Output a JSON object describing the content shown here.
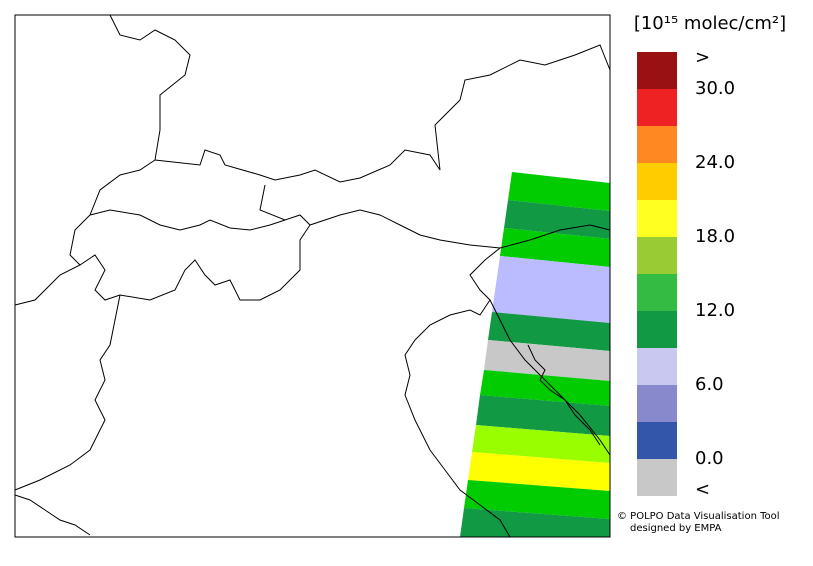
{
  "colorbar": {
    "title": "[10¹⁵ molec/cm²]",
    "clim": [
      0,
      30
    ],
    "ticks": [
      {
        "value": 0,
        "label": "0.0"
      },
      {
        "value": 6,
        "label": "6.0"
      },
      {
        "value": 12,
        "label": "12.0"
      },
      {
        "value": 18,
        "label": "18.0"
      },
      {
        "value": 24,
        "label": "24.0"
      },
      {
        "value": 30,
        "label": "30.0"
      }
    ],
    "colors": [
      "#3355aa",
      "#8888cc",
      "#c8c8f0",
      "#119944",
      "#33bb44",
      "#99cc33",
      "#ffff22",
      "#ffcc00",
      "#ff8822",
      "#ee2222"
    ],
    "under_color": "#c8c8c8",
    "under_label": "<",
    "over_color": "#991111",
    "over_label": ">"
  },
  "credit": {
    "line1": "© POLPO Data Visualisation Tool",
    "line2": "designed by EMPA"
  }
}
